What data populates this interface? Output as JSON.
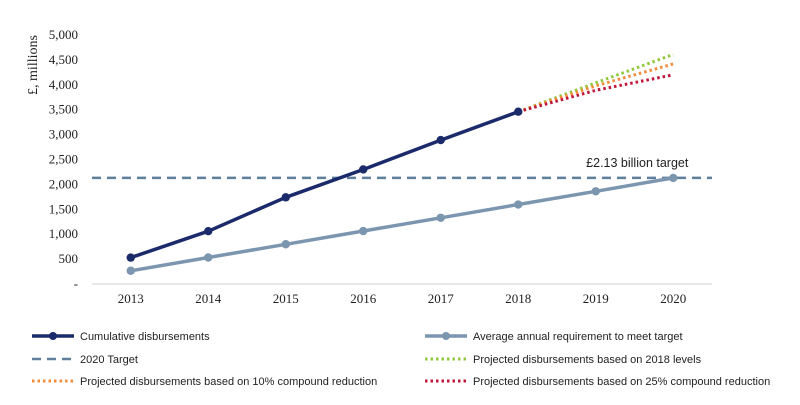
{
  "chart_data": {
    "type": "line",
    "ylabel": "£, millions",
    "ylim": [
      0,
      5000
    ],
    "yticks": [
      "-",
      "500",
      "1,000",
      "1,500",
      "2,000",
      "2,500",
      "3,000",
      "3,500",
      "4,000",
      "4,500",
      "5,000"
    ],
    "ytick_values": [
      0,
      500,
      1000,
      1500,
      2000,
      2500,
      3000,
      3500,
      4000,
      4500,
      5000
    ],
    "categories": [
      "2013",
      "2014",
      "2015",
      "2016",
      "2017",
      "2018",
      "2019",
      "2020"
    ],
    "grid": false,
    "legend_position": "bottom",
    "series": [
      {
        "name": "Cumulative disbursements",
        "color": "#1b2a6b",
        "style": "solid-markers",
        "x": [
          "2013",
          "2014",
          "2015",
          "2016",
          "2017",
          "2018"
        ],
        "values": [
          530,
          1060,
          1740,
          2300,
          2890,
          3460
        ]
      },
      {
        "name": "Average annual requirement to meet target",
        "color": "#7c96b0",
        "style": "solid-markers",
        "x": [
          "2013",
          "2014",
          "2015",
          "2016",
          "2017",
          "2018",
          "2019",
          "2020"
        ],
        "values": [
          266,
          532,
          798,
          1064,
          1330,
          1596,
          1862,
          2130
        ]
      },
      {
        "name": "2020 Target",
        "color": "#5f7f9a",
        "style": "dashed-hline",
        "value": 2130
      },
      {
        "name": "Projected disbursements based on 2018 levels",
        "color": "#92c83e",
        "style": "dotted",
        "x": [
          "2018",
          "2019",
          "2020"
        ],
        "values": [
          3460,
          4040,
          4610
        ]
      },
      {
        "name": "Projected disbursements based on 10% compound reduction",
        "color": "#f28c3a",
        "style": "dotted",
        "x": [
          "2018",
          "2019",
          "2020"
        ],
        "values": [
          3460,
          3980,
          4420
        ]
      },
      {
        "name": "Projected disbursements based on 25% compound reduction",
        "color": "#c0163a",
        "style": "dotted",
        "x": [
          "2018",
          "2019",
          "2020"
        ],
        "values": [
          3460,
          3890,
          4200
        ]
      }
    ],
    "annotations": [
      {
        "text": "£2.13 billion target",
        "x": "2020",
        "y": 2130
      }
    ]
  }
}
